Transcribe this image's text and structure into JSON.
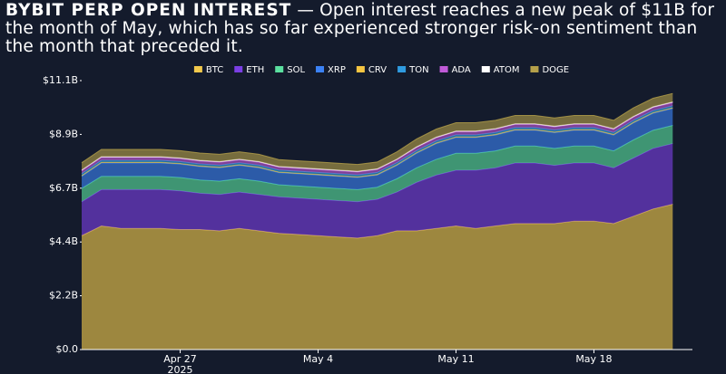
{
  "chart_data": {
    "type": "stacked_area",
    "title": "BYBIT PERP OPEN INTEREST",
    "subtitle": "— Open interest reaches a new peak of $11B for the month of May, which has so far experienced stronger risk-on sentiment than the month that preceded it.",
    "x": [
      "2025-04-22",
      "2025-04-23",
      "2025-04-24",
      "2025-04-25",
      "2025-04-26",
      "2025-04-27",
      "2025-04-28",
      "2025-04-29",
      "2025-04-30",
      "2025-05-01",
      "2025-05-02",
      "2025-05-03",
      "2025-05-04",
      "2025-05-05",
      "2025-05-06",
      "2025-05-07",
      "2025-05-08",
      "2025-05-09",
      "2025-05-10",
      "2025-05-11",
      "2025-05-12",
      "2025-05-13",
      "2025-05-14",
      "2025-05-15",
      "2025-05-16",
      "2025-05-17",
      "2025-05-18",
      "2025-05-19",
      "2025-05-20",
      "2025-05-21",
      "2025-05-22"
    ],
    "xlim": [
      "2025-04-22",
      "2025-05-23"
    ],
    "xticks": [
      {
        "value": "2025-04-27",
        "label": "Apr 27"
      },
      {
        "value": "2025-05-04",
        "label": "May 4"
      },
      {
        "value": "2025-05-11",
        "label": "May 11"
      },
      {
        "value": "2025-05-18",
        "label": "May 18"
      }
    ],
    "x_year_label": "2025",
    "ylim": [
      0,
      11100000000.0
    ],
    "yticks": [
      {
        "value": 0,
        "label": "$0.0"
      },
      {
        "value": 2220000000.0,
        "label": "$2.2B"
      },
      {
        "value": 4440000000.0,
        "label": "$4.4B"
      },
      {
        "value": 6660000000.0,
        "label": "$6.7B"
      },
      {
        "value": 8880000000.0,
        "label": "$8.9B"
      },
      {
        "value": 11100000000.0,
        "label": "$11.1B"
      }
    ],
    "grid": false,
    "legend": "top",
    "series": [
      {
        "name": "BTC",
        "color": "#f2c94c",
        "values": [
          4700000000.0,
          5100000000.0,
          5000000000.0,
          5000000000.0,
          5000000000.0,
          4950000000.0,
          4950000000.0,
          4900000000.0,
          5000000000.0,
          4900000000.0,
          4800000000.0,
          4750000000.0,
          4700000000.0,
          4650000000.0,
          4600000000.0,
          4700000000.0,
          4900000000.0,
          4900000000.0,
          5000000000.0,
          5100000000.0,
          5000000000.0,
          5100000000.0,
          5200000000.0,
          5200000000.0,
          5200000000.0,
          5300000000.0,
          5300000000.0,
          5200000000.0,
          5500000000.0,
          5800000000.0,
          6000000000.0
        ]
      },
      {
        "name": "ETH",
        "color": "#7b3fe4",
        "values": [
          1400000000.0,
          1500000000.0,
          1600000000.0,
          1600000000.0,
          1600000000.0,
          1600000000.0,
          1500000000.0,
          1500000000.0,
          1500000000.0,
          1500000000.0,
          1500000000.0,
          1500000000.0,
          1500000000.0,
          1500000000.0,
          1500000000.0,
          1500000000.0,
          1600000000.0,
          2000000000.0,
          2200000000.0,
          2300000000.0,
          2400000000.0,
          2400000000.0,
          2500000000.0,
          2500000000.0,
          2400000000.0,
          2400000000.0,
          2400000000.0,
          2300000000.0,
          2400000000.0,
          2500000000.0,
          2500000000.0
        ]
      },
      {
        "name": "SOL",
        "color": "#5be0a0",
        "values": [
          550000000.0,
          550000000.0,
          550000000.0,
          550000000.0,
          550000000.0,
          550000000.0,
          550000000.0,
          550000000.0,
          550000000.0,
          550000000.0,
          500000000.0,
          500000000.0,
          500000000.0,
          500000000.0,
          500000000.0,
          500000000.0,
          550000000.0,
          600000000.0,
          650000000.0,
          700000000.0,
          700000000.0,
          700000000.0,
          700000000.0,
          700000000.0,
          700000000.0,
          700000000.0,
          700000000.0,
          700000000.0,
          750000000.0,
          750000000.0,
          750000000.0
        ]
      },
      {
        "name": "XRP",
        "color": "#3b82f6",
        "values": [
          500000000.0,
          550000000.0,
          550000000.0,
          550000000.0,
          550000000.0,
          550000000.0,
          550000000.0,
          550000000.0,
          550000000.0,
          550000000.0,
          500000000.0,
          500000000.0,
          500000000.0,
          500000000.0,
          500000000.0,
          500000000.0,
          550000000.0,
          600000000.0,
          650000000.0,
          650000000.0,
          650000000.0,
          650000000.0,
          650000000.0,
          650000000.0,
          650000000.0,
          650000000.0,
          650000000.0,
          650000000.0,
          700000000.0,
          700000000.0,
          700000000.0
        ]
      },
      {
        "name": "CRV",
        "color": "#f5c542",
        "values": [
          30000000.0,
          30000000.0,
          30000000.0,
          30000000.0,
          30000000.0,
          30000000.0,
          30000000.0,
          30000000.0,
          30000000.0,
          30000000.0,
          30000000.0,
          30000000.0,
          30000000.0,
          30000000.0,
          30000000.0,
          30000000.0,
          30000000.0,
          30000000.0,
          30000000.0,
          30000000.0,
          30000000.0,
          30000000.0,
          30000000.0,
          30000000.0,
          30000000.0,
          30000000.0,
          30000000.0,
          30000000.0,
          30000000.0,
          30000000.0,
          30000000.0
        ]
      },
      {
        "name": "TON",
        "color": "#2f9be0",
        "values": [
          80000000.0,
          80000000.0,
          80000000.0,
          80000000.0,
          80000000.0,
          80000000.0,
          80000000.0,
          80000000.0,
          80000000.0,
          80000000.0,
          80000000.0,
          80000000.0,
          80000000.0,
          80000000.0,
          80000000.0,
          80000000.0,
          80000000.0,
          80000000.0,
          80000000.0,
          80000000.0,
          80000000.0,
          80000000.0,
          80000000.0,
          80000000.0,
          80000000.0,
          80000000.0,
          80000000.0,
          80000000.0,
          80000000.0,
          80000000.0,
          80000000.0
        ]
      },
      {
        "name": "ADA",
        "color": "#c05ad8",
        "values": [
          120000000.0,
          120000000.0,
          120000000.0,
          120000000.0,
          120000000.0,
          120000000.0,
          120000000.0,
          120000000.0,
          120000000.0,
          120000000.0,
          120000000.0,
          120000000.0,
          120000000.0,
          120000000.0,
          120000000.0,
          120000000.0,
          120000000.0,
          130000000.0,
          130000000.0,
          130000000.0,
          130000000.0,
          130000000.0,
          130000000.0,
          130000000.0,
          130000000.0,
          130000000.0,
          130000000.0,
          130000000.0,
          130000000.0,
          130000000.0,
          130000000.0
        ]
      },
      {
        "name": "ATOM",
        "color": "#ffffff",
        "values": [
          30000000.0,
          30000000.0,
          30000000.0,
          30000000.0,
          30000000.0,
          30000000.0,
          30000000.0,
          30000000.0,
          30000000.0,
          30000000.0,
          30000000.0,
          30000000.0,
          30000000.0,
          30000000.0,
          30000000.0,
          30000000.0,
          30000000.0,
          30000000.0,
          30000000.0,
          30000000.0,
          30000000.0,
          30000000.0,
          30000000.0,
          30000000.0,
          30000000.0,
          30000000.0,
          30000000.0,
          30000000.0,
          30000000.0,
          30000000.0,
          30000000.0
        ]
      },
      {
        "name": "DOGE",
        "color": "#b5a04a",
        "values": [
          300000000.0,
          300000000.0,
          300000000.0,
          300000000.0,
          300000000.0,
          300000000.0,
          300000000.0,
          300000000.0,
          300000000.0,
          300000000.0,
          280000000.0,
          280000000.0,
          280000000.0,
          280000000.0,
          280000000.0,
          280000000.0,
          300000000.0,
          320000000.0,
          330000000.0,
          340000000.0,
          340000000.0,
          340000000.0,
          340000000.0,
          340000000.0,
          340000000.0,
          340000000.0,
          340000000.0,
          340000000.0,
          350000000.0,
          350000000.0,
          350000000.0
        ]
      }
    ]
  }
}
